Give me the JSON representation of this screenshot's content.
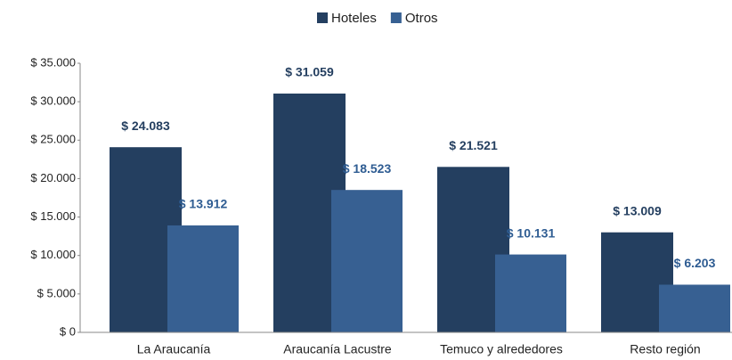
{
  "chart_data": {
    "type": "bar",
    "categories": [
      "La Araucanía",
      "Araucanía Lacustre",
      "Temuco y alrededores",
      "Resto región"
    ],
    "series": [
      {
        "name": "Hoteles",
        "color": "#243f60",
        "values": [
          24083,
          31059,
          21521,
          13009
        ],
        "value_labels": [
          "$ 24.083",
          "$ 31.059",
          "$ 21.521",
          "$ 13.009"
        ]
      },
      {
        "name": "Otros",
        "color": "#376092",
        "values": [
          13912,
          18523,
          10131,
          6203
        ],
        "value_labels": [
          "$ 13.912",
          "$ 18.523",
          "$ 10.131",
          "$ 6.203"
        ]
      }
    ],
    "ylim": [
      0,
      35000
    ],
    "yticks": [
      {
        "value": 0,
        "label": "$ 0"
      },
      {
        "value": 5000,
        "label": "$ 5.000"
      },
      {
        "value": 10000,
        "label": "$ 10.000"
      },
      {
        "value": 15000,
        "label": "$ 15.000"
      },
      {
        "value": 20000,
        "label": "$ 20.000"
      },
      {
        "value": 25000,
        "label": "$ 25.000"
      },
      {
        "value": 30000,
        "label": "$ 30.000"
      },
      {
        "value": 35000,
        "label": "$ 35.000"
      }
    ],
    "grid": false,
    "legend": "top"
  }
}
